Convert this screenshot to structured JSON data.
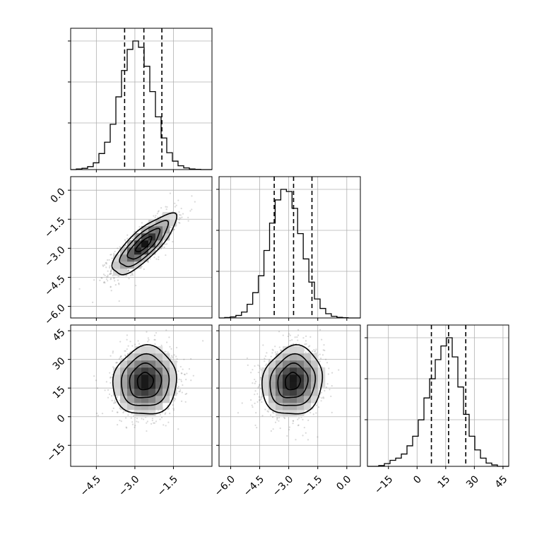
{
  "chart_data": {
    "type": "corner",
    "title": "",
    "variables": [
      {
        "index": 0,
        "range": [
          -5.5,
          0.0
        ],
        "ticks": [
          -4.5,
          -3.0,
          -1.5
        ],
        "tick_labels": [
          "−4.5",
          "−3.0",
          "−1.5"
        ],
        "quantiles": [
          -3.4,
          -2.65,
          -1.95
        ]
      },
      {
        "index": 1,
        "range": [
          -6.6,
          0.7
        ],
        "ticks": [
          -6.0,
          -4.5,
          -3.0,
          -1.5,
          0.0
        ],
        "tick_labels": [
          "−6.0",
          "−4.5",
          "−3.0",
          "−1.5",
          "0.0"
        ],
        "quantiles": [
          -3.75,
          -2.75,
          -1.8
        ]
      },
      {
        "index": 2,
        "range": [
          -26,
          48
        ],
        "ticks": [
          -15,
          0,
          15,
          30,
          45
        ],
        "tick_labels": [
          "−15",
          "0",
          "15",
          "30",
          "45"
        ],
        "quantiles": [
          7.5,
          16.5,
          25.5
        ]
      }
    ],
    "histograms": [
      {
        "var": 0,
        "bin_edges": [
          -5.5,
          -5.28,
          -5.06,
          -4.84,
          -4.62,
          -4.4,
          -4.18,
          -3.96,
          -3.74,
          -3.52,
          -3.3,
          -3.08,
          -2.86,
          -2.64,
          -2.42,
          -2.2,
          -1.98,
          -1.76,
          -1.54,
          -1.32,
          -1.1,
          -0.88,
          -0.66,
          -0.44,
          -0.22,
          0.0
        ],
        "counts": [
          0,
          3,
          6,
          14,
          32,
          76,
          130,
          215,
          345,
          470,
          570,
          610,
          580,
          490,
          370,
          250,
          150,
          80,
          40,
          18,
          8,
          3,
          1,
          0,
          0
        ]
      },
      {
        "var": 1,
        "bin_edges": [
          -6.6,
          -6.31,
          -6.02,
          -5.73,
          -5.44,
          -5.15,
          -4.86,
          -4.57,
          -4.28,
          -3.99,
          -3.7,
          -3.41,
          -3.12,
          -2.83,
          -2.54,
          -2.25,
          -1.96,
          -1.67,
          -1.38,
          -1.09,
          -0.8,
          -0.51,
          -0.22,
          0.07,
          0.36,
          0.7
        ],
        "counts": [
          0,
          2,
          5,
          12,
          28,
          65,
          120,
          200,
          320,
          450,
          560,
          610,
          600,
          520,
          400,
          280,
          170,
          90,
          45,
          20,
          8,
          3,
          1,
          0,
          0
        ]
      },
      {
        "var": 2,
        "bin_edges": [
          -26,
          -23.04,
          -20.08,
          -17.12,
          -14.16,
          -11.2,
          -8.24,
          -5.28,
          -2.32,
          0.64,
          3.6,
          6.56,
          9.52,
          12.48,
          15.44,
          18.4,
          21.36,
          24.32,
          27.28,
          30.24,
          33.2,
          36.16,
          39.12,
          42.08,
          45.04,
          48
        ],
        "counts": [
          0,
          0,
          3,
          10,
          22,
          30,
          45,
          75,
          110,
          170,
          250,
          320,
          390,
          440,
          470,
          400,
          290,
          190,
          110,
          60,
          30,
          12,
          5,
          0,
          0
        ]
      }
    ],
    "pairs": [
      {
        "x_var": 0,
        "y_var": 1,
        "mean": [
          -2.65,
          -2.8
        ],
        "std": [
          0.62,
          0.78
        ],
        "corr": 0.8,
        "n_points": 1300
      },
      {
        "x_var": 0,
        "y_var": 2,
        "mean": [
          -2.6,
          18.5
        ],
        "std": [
          0.62,
          9.0
        ],
        "corr": 0.05,
        "n_points": 1300
      },
      {
        "x_var": 1,
        "y_var": 2,
        "mean": [
          -2.8,
          18.5
        ],
        "std": [
          0.78,
          9.0
        ],
        "corr": 0.1,
        "n_points": 1300
      }
    ],
    "contour_levels_sigma": [
      0.5,
      1.0,
      1.5,
      2.0
    ],
    "grid": true
  }
}
